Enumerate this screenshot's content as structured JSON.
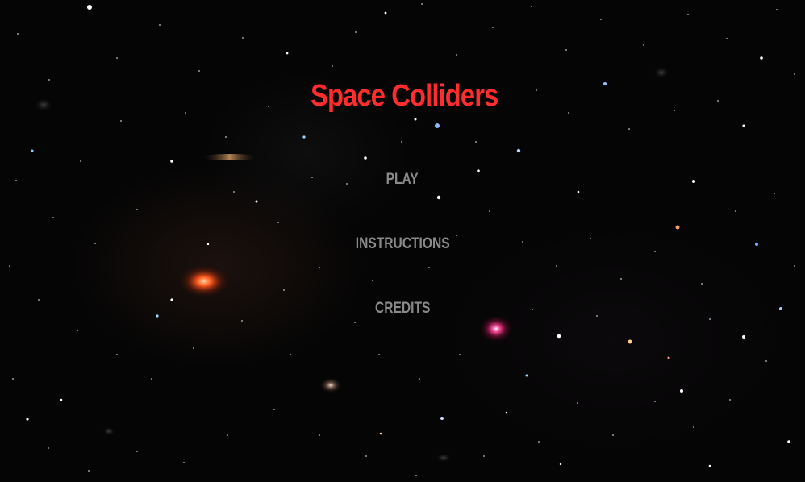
{
  "game": {
    "title": "Space Colliders",
    "title_color": "#ff2d2d",
    "menu_color": "#8a8a8a",
    "background_color": "#050505"
  },
  "menu": {
    "play_label": "PLAY",
    "instructions_label": "INSTRUCTIONS",
    "credits_label": "CREDITS"
  }
}
